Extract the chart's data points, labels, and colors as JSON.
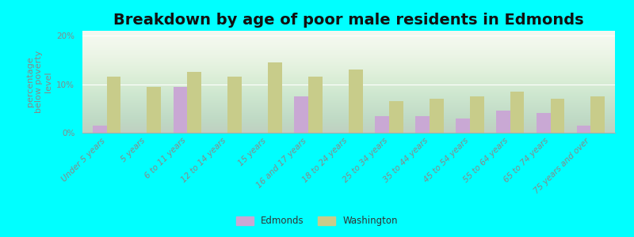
{
  "title": "Breakdown by age of poor male residents in Edmonds",
  "ylabel": "percentage\nbelow poverty\nlevel",
  "categories": [
    "Under 5 years",
    "5 years",
    "6 to 11 years",
    "12 to 14 years",
    "15 years",
    "16 and 17 years",
    "18 to 24 years",
    "25 to 34 years",
    "35 to 44 years",
    "45 to 54 years",
    "55 to 64 years",
    "65 to 74 years",
    "75 years and over"
  ],
  "edmonds": [
    1.5,
    0.0,
    9.5,
    0.0,
    0.0,
    7.5,
    0.0,
    3.5,
    3.5,
    3.0,
    4.5,
    4.0,
    1.5
  ],
  "washington": [
    11.5,
    9.5,
    12.5,
    11.5,
    14.5,
    11.5,
    13.0,
    6.5,
    7.0,
    7.5,
    8.5,
    7.0,
    7.5
  ],
  "edmonds_color": "#c9a8d4",
  "washington_color": "#c8cc8a",
  "plot_bg_top": "#f5f8f0",
  "plot_bg_bottom": "#d0e8b0",
  "outer_background": "#00ffff",
  "ylim": [
    0,
    21
  ],
  "yticks": [
    0,
    10,
    20
  ],
  "ytick_labels": [
    "0%",
    "10%",
    "20%"
  ],
  "title_fontsize": 14,
  "axis_label_fontsize": 8,
  "tick_fontsize": 7.5,
  "bar_width": 0.35,
  "legend_edmonds": "Edmonds",
  "legend_washington": "Washington",
  "tick_color": "#888888",
  "label_color": "#888888"
}
